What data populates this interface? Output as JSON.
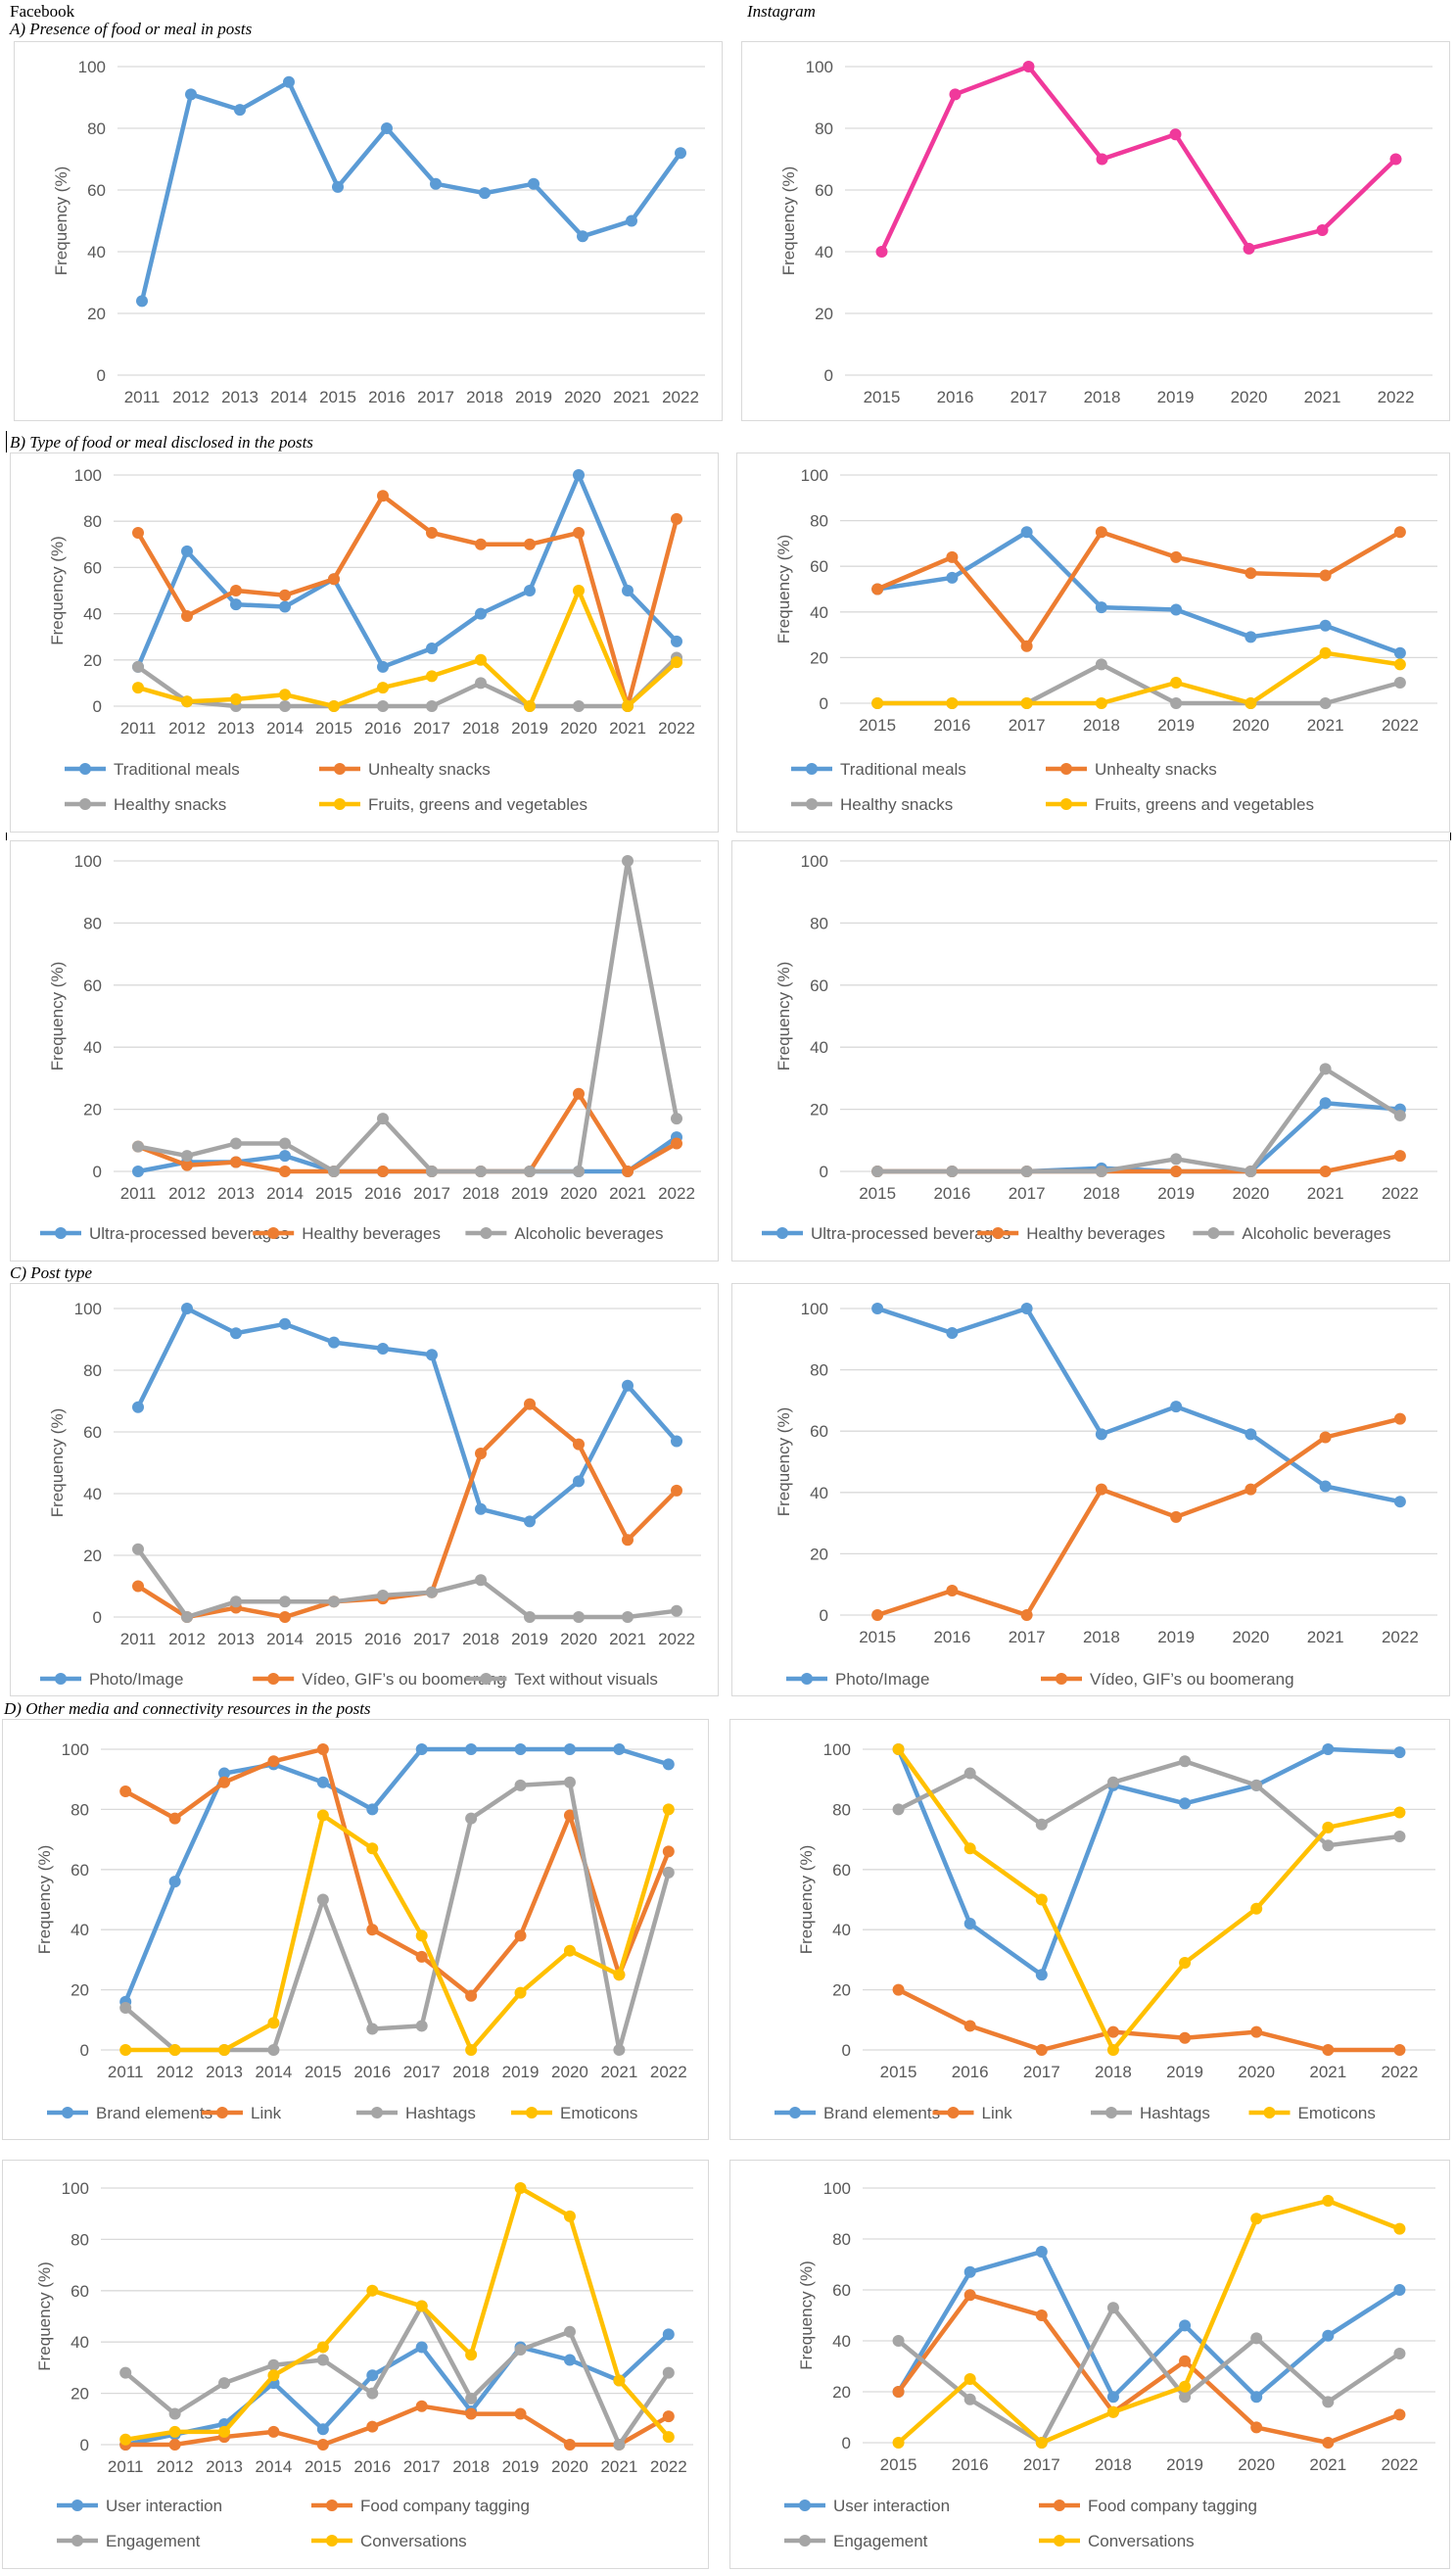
{
  "headers": {
    "facebook": "Facebook",
    "instagram": "Instagram",
    "section_a": "A) Presence of food or meal in posts",
    "section_b": "B) Type of food or meal disclosed in the posts",
    "section_c": "C)   Post type",
    "section_d": "D) Other media and connectivity resources in the posts"
  },
  "colors": {
    "blue": "#5b9bd5",
    "orange": "#ed7d31",
    "gray": "#a5a5a5",
    "yellow": "#ffc000",
    "pink": "#f0399b",
    "grid": "#d9d9d9",
    "axis_text": "#595959"
  },
  "chart_data": [
    {
      "id": "fb-presence",
      "type": "line",
      "title": "",
      "xlabel": "",
      "ylabel": "Frequency (%)",
      "ylim": [
        0,
        100
      ],
      "yticks": [
        0,
        20,
        40,
        60,
        80,
        100
      ],
      "legend": "none",
      "grid": true,
      "categories": [
        "2011",
        "2012",
        "2013",
        "2014",
        "2015",
        "2016",
        "2017",
        "2018",
        "2019",
        "2020",
        "2021",
        "2022"
      ],
      "series": [
        {
          "name": "Presence of food or meal",
          "color": "blue",
          "values": [
            24,
            91,
            86,
            95,
            61,
            80,
            62,
            59,
            62,
            45,
            50,
            72
          ]
        }
      ]
    },
    {
      "id": "ig-presence",
      "type": "line",
      "title": "",
      "xlabel": "",
      "ylabel": "Frequency (%)",
      "ylim": [
        0,
        100
      ],
      "yticks": [
        0,
        20,
        40,
        60,
        80,
        100
      ],
      "legend": "none",
      "grid": true,
      "categories": [
        "2015",
        "2016",
        "2017",
        "2018",
        "2019",
        "2020",
        "2021",
        "2022"
      ],
      "series": [
        {
          "name": "Presence of food or meal",
          "color": "pink",
          "values": [
            40,
            91,
            100,
            70,
            78,
            41,
            47,
            70
          ]
        }
      ]
    },
    {
      "id": "fb-food-type",
      "type": "line",
      "title": "",
      "xlabel": "",
      "ylabel": "Frequency (%)",
      "ylim": [
        0,
        100
      ],
      "yticks": [
        0,
        20,
        40,
        60,
        80,
        100
      ],
      "legend": "bottom",
      "grid": true,
      "categories": [
        "2011",
        "2012",
        "2013",
        "2014",
        "2015",
        "2016",
        "2017",
        "2018",
        "2019",
        "2020",
        "2021",
        "2022"
      ],
      "series": [
        {
          "name": "Traditional meals",
          "color": "blue",
          "values": [
            17,
            67,
            44,
            43,
            55,
            17,
            25,
            40,
            50,
            100,
            50,
            28
          ]
        },
        {
          "name": "Unhealty snacks",
          "color": "orange",
          "values": [
            75,
            39,
            50,
            48,
            55,
            91,
            75,
            70,
            70,
            75,
            0,
            81
          ]
        },
        {
          "name": "Healthy snacks",
          "color": "gray",
          "values": [
            17,
            2,
            0,
            0,
            0,
            0,
            0,
            10,
            0,
            0,
            0,
            21
          ]
        },
        {
          "name": "Fruits, greens and vegetables",
          "color": "yellow",
          "values": [
            8,
            2,
            3,
            5,
            0,
            8,
            13,
            20,
            0,
            50,
            0,
            19
          ]
        }
      ]
    },
    {
      "id": "ig-food-type",
      "type": "line",
      "title": "",
      "xlabel": "",
      "ylabel": "Frequency (%)",
      "ylim": [
        0,
        100
      ],
      "yticks": [
        0,
        20,
        40,
        60,
        80,
        100
      ],
      "legend": "bottom",
      "grid": true,
      "categories": [
        "2015",
        "2016",
        "2017",
        "2018",
        "2019",
        "2020",
        "2021",
        "2022"
      ],
      "series": [
        {
          "name": "Traditional meals",
          "color": "blue",
          "values": [
            50,
            55,
            75,
            42,
            41,
            29,
            34,
            22
          ]
        },
        {
          "name": "Unhealty snacks",
          "color": "orange",
          "values": [
            50,
            64,
            25,
            75,
            64,
            57,
            56,
            75
          ]
        },
        {
          "name": "Healthy snacks",
          "color": "gray",
          "values": [
            0,
            0,
            0,
            17,
            0,
            0,
            0,
            9
          ]
        },
        {
          "name": "Fruits, greens and vegetables",
          "color": "yellow",
          "values": [
            0,
            0,
            0,
            0,
            9,
            0,
            22,
            17
          ]
        }
      ]
    },
    {
      "id": "fb-beverages",
      "type": "line",
      "title": "",
      "xlabel": "",
      "ylabel": "Frequency (%)",
      "ylim": [
        0,
        100
      ],
      "yticks": [
        0,
        20,
        40,
        60,
        80,
        100
      ],
      "legend": "bottom",
      "grid": true,
      "categories": [
        "2011",
        "2012",
        "2013",
        "2014",
        "2015",
        "2016",
        "2017",
        "2018",
        "2019",
        "2020",
        "2021",
        "2022"
      ],
      "series": [
        {
          "name": "Ultra-processed beverages",
          "color": "blue",
          "values": [
            0,
            3,
            3,
            5,
            0,
            0,
            0,
            0,
            0,
            0,
            0,
            11
          ]
        },
        {
          "name": "Healthy beverages",
          "color": "orange",
          "values": [
            8,
            2,
            3,
            0,
            0,
            0,
            0,
            0,
            0,
            25,
            0,
            9
          ]
        },
        {
          "name": "Alcoholic beverages",
          "color": "gray",
          "values": [
            8,
            5,
            9,
            9,
            0,
            17,
            0,
            0,
            0,
            0,
            100,
            17
          ]
        }
      ]
    },
    {
      "id": "ig-beverages",
      "type": "line",
      "title": "",
      "xlabel": "",
      "ylabel": "Frequency (%)",
      "ylim": [
        0,
        100
      ],
      "yticks": [
        0,
        20,
        40,
        60,
        80,
        100
      ],
      "legend": "bottom",
      "grid": true,
      "categories": [
        "2015",
        "2016",
        "2017",
        "2018",
        "2019",
        "2020",
        "2021",
        "2022"
      ],
      "series": [
        {
          "name": "Ultra-processed beverages",
          "color": "blue",
          "values": [
            0,
            0,
            0,
            1,
            0,
            0,
            22,
            20
          ]
        },
        {
          "name": "Healthy beverages",
          "color": "orange",
          "values": [
            0,
            0,
            0,
            0,
            0,
            0,
            0,
            5
          ]
        },
        {
          "name": "Alcoholic beverages",
          "color": "gray",
          "values": [
            0,
            0,
            0,
            0,
            4,
            0,
            33,
            18
          ]
        }
      ]
    },
    {
      "id": "fb-post-type",
      "type": "line",
      "title": "",
      "xlabel": "",
      "ylabel": "Frequency (%)",
      "ylim": [
        0,
        100
      ],
      "yticks": [
        0,
        20,
        40,
        60,
        80,
        100
      ],
      "legend": "bottom",
      "grid": true,
      "categories": [
        "2011",
        "2012",
        "2013",
        "2014",
        "2015",
        "2016",
        "2017",
        "2018",
        "2019",
        "2020",
        "2021",
        "2022"
      ],
      "series": [
        {
          "name": "Photo/Image",
          "color": "blue",
          "values": [
            68,
            100,
            92,
            95,
            89,
            87,
            85,
            35,
            31,
            44,
            75,
            57
          ]
        },
        {
          "name": "Vídeo, GIF’s ou boomerang",
          "color": "orange",
          "values": [
            10,
            0,
            3,
            0,
            5,
            6,
            8,
            53,
            69,
            56,
            25,
            41
          ]
        },
        {
          "name": "Text without visuals",
          "color": "gray",
          "values": [
            22,
            0,
            5,
            5,
            5,
            7,
            8,
            12,
            0,
            0,
            0,
            2
          ]
        }
      ]
    },
    {
      "id": "ig-post-type",
      "type": "line",
      "title": "",
      "xlabel": "",
      "ylabel": "Frequency (%)",
      "ylim": [
        0,
        100
      ],
      "yticks": [
        0,
        20,
        40,
        60,
        80,
        100
      ],
      "legend": "bottom",
      "grid": true,
      "categories": [
        "2015",
        "2016",
        "2017",
        "2018",
        "2019",
        "2020",
        "2021",
        "2022"
      ],
      "series": [
        {
          "name": "Photo/Image",
          "color": "blue",
          "values": [
            100,
            92,
            100,
            59,
            68,
            59,
            42,
            37
          ]
        },
        {
          "name": "Vídeo, GIF’s ou boomerang",
          "color": "orange",
          "values": [
            0,
            8,
            0,
            41,
            32,
            41,
            58,
            64
          ]
        }
      ]
    },
    {
      "id": "fb-media",
      "type": "line",
      "title": "",
      "xlabel": "",
      "ylabel": "Frequency (%)",
      "ylim": [
        0,
        100
      ],
      "yticks": [
        0,
        20,
        40,
        60,
        80,
        100
      ],
      "legend": "bottom",
      "grid": true,
      "categories": [
        "2011",
        "2012",
        "2013",
        "2014",
        "2015",
        "2016",
        "2017",
        "2018",
        "2019",
        "2020",
        "2021",
        "2022"
      ],
      "series": [
        {
          "name": "Brand elements",
          "color": "blue",
          "values": [
            16,
            56,
            92,
            95,
            89,
            80,
            100,
            100,
            100,
            100,
            100,
            95
          ]
        },
        {
          "name": "Link",
          "color": "orange",
          "values": [
            86,
            77,
            89,
            96,
            100,
            40,
            31,
            18,
            38,
            78,
            25,
            66
          ]
        },
        {
          "name": "Hashtags",
          "color": "gray",
          "values": [
            14,
            0,
            0,
            0,
            50,
            7,
            8,
            77,
            88,
            89,
            0,
            59
          ]
        },
        {
          "name": "Emoticons",
          "color": "yellow",
          "values": [
            0,
            0,
            0,
            9,
            78,
            67,
            38,
            0,
            19,
            33,
            25,
            80
          ]
        }
      ]
    },
    {
      "id": "ig-media",
      "type": "line",
      "title": "",
      "xlabel": "",
      "ylabel": "Frequency (%)",
      "ylim": [
        0,
        100
      ],
      "yticks": [
        0,
        20,
        40,
        60,
        80,
        100
      ],
      "legend": "bottom",
      "grid": true,
      "categories": [
        "2015",
        "2016",
        "2017",
        "2018",
        "2019",
        "2020",
        "2021",
        "2022"
      ],
      "series": [
        {
          "name": "Brand elements",
          "color": "blue",
          "values": [
            100,
            42,
            25,
            88,
            82,
            88,
            100,
            99
          ]
        },
        {
          "name": "Link",
          "color": "orange",
          "values": [
            20,
            8,
            0,
            6,
            4,
            6,
            0,
            0
          ]
        },
        {
          "name": "Hashtags",
          "color": "gray",
          "values": [
            80,
            92,
            75,
            89,
            96,
            88,
            68,
            71
          ]
        },
        {
          "name": "Emoticons",
          "color": "yellow",
          "values": [
            100,
            67,
            50,
            0,
            29,
            47,
            74,
            79
          ]
        }
      ]
    },
    {
      "id": "fb-connectivity",
      "type": "line",
      "title": "",
      "xlabel": "",
      "ylabel": "Frequency (%)",
      "ylim": [
        0,
        100
      ],
      "yticks": [
        0,
        20,
        40,
        60,
        80,
        100
      ],
      "legend": "bottom",
      "grid": true,
      "categories": [
        "2011",
        "2012",
        "2013",
        "2014",
        "2015",
        "2016",
        "2017",
        "2018",
        "2019",
        "2020",
        "2021",
        "2022"
      ],
      "series": [
        {
          "name": "User interaction",
          "color": "blue",
          "values": [
            0,
            4,
            8,
            24,
            6,
            27,
            38,
            13,
            38,
            33,
            25,
            43
          ]
        },
        {
          "name": "Food company tagging",
          "color": "orange",
          "values": [
            0,
            0,
            3,
            5,
            0,
            7,
            15,
            12,
            12,
            0,
            0,
            11
          ]
        },
        {
          "name": "Engagement",
          "color": "gray",
          "values": [
            28,
            12,
            24,
            31,
            33,
            20,
            54,
            18,
            37,
            44,
            0,
            28
          ]
        },
        {
          "name": "Conversations",
          "color": "yellow",
          "values": [
            2,
            5,
            5,
            27,
            38,
            60,
            54,
            35,
            100,
            89,
            25,
            3
          ]
        }
      ]
    },
    {
      "id": "ig-connectivity",
      "type": "line",
      "title": "",
      "xlabel": "",
      "ylabel": "Frequency (%)",
      "ylim": [
        0,
        100
      ],
      "yticks": [
        0,
        20,
        40,
        60,
        80,
        100
      ],
      "legend": "bottom",
      "grid": true,
      "categories": [
        "2015",
        "2016",
        "2017",
        "2018",
        "2019",
        "2020",
        "2021",
        "2022"
      ],
      "series": [
        {
          "name": "User interaction",
          "color": "blue",
          "values": [
            20,
            67,
            75,
            18,
            46,
            18,
            42,
            60
          ]
        },
        {
          "name": "Food company tagging",
          "color": "orange",
          "values": [
            20,
            58,
            50,
            12,
            32,
            6,
            0,
            11
          ]
        },
        {
          "name": "Engagement",
          "color": "gray",
          "values": [
            40,
            17,
            0,
            53,
            18,
            41,
            16,
            35
          ]
        },
        {
          "name": "Conversations",
          "color": "yellow",
          "values": [
            0,
            25,
            0,
            12,
            22,
            88,
            95,
            84
          ]
        }
      ]
    }
  ]
}
